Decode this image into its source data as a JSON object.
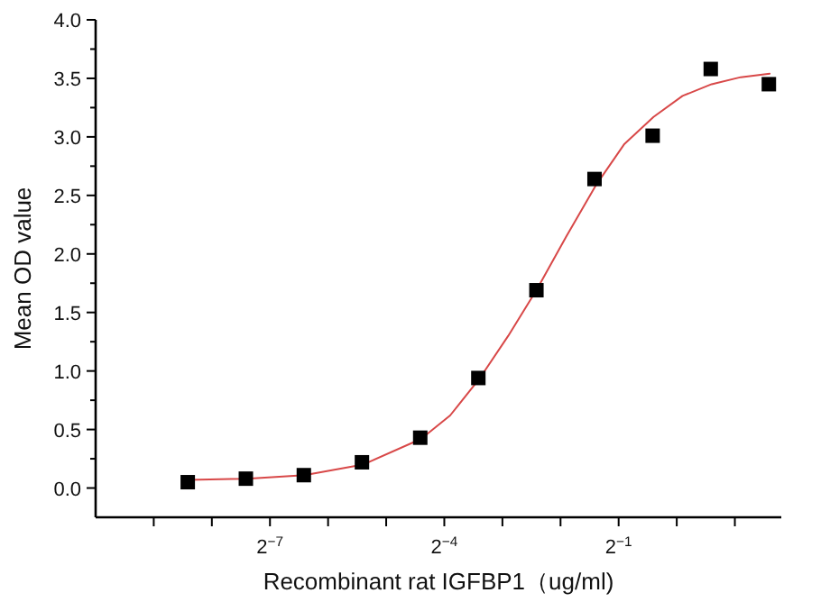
{
  "chart_data": {
    "type": "scatter",
    "xlabel": "Recombinant rat IGFBP1（ug/ml)",
    "ylabel": "Mean OD value",
    "log": "x",
    "xlim": [
      0.0009765625,
      3.48
    ],
    "xticks": [
      {
        "value": 0.001953125,
        "label": null
      },
      {
        "value": 0.00390625,
        "label": null
      },
      {
        "value": 0.0078125,
        "label": "2$^{−7}$"
      },
      {
        "value": 0.015625,
        "label": null
      },
      {
        "value": 0.03125,
        "label": null
      },
      {
        "value": 0.0625,
        "label": "2$^{−4}$"
      },
      {
        "value": 0.125,
        "label": null
      },
      {
        "value": 0.25,
        "label": null
      },
      {
        "value": 0.5,
        "label": "2$^{−1}$"
      },
      {
        "value": 1,
        "label": null
      },
      {
        "value": 2,
        "label": null
      }
    ],
    "ylim": [
      -0.25,
      4.0
    ],
    "yticks": [
      {
        "value": 0,
        "label": "0.0"
      },
      0.5,
      {
        "value": 1,
        "label": "1.0"
      },
      1.5,
      {
        "value": 2,
        "label": "2.0"
      },
      2.5,
      {
        "value": 3,
        "label": "3.0"
      },
      3.5,
      {
        "value": 4,
        "label": "4.0"
      }
    ],
    "series": [
      {
        "type": "line",
        "color": "#d84848",
        "marker": "none",
        "x": [
          0.00296,
          0.00592,
          0.0118,
          0.0237,
          0.0474,
          0.067,
          0.0947,
          0.134,
          0.189,
          0.268,
          0.379,
          0.536,
          0.758,
          1.072,
          1.516,
          2.144,
          3.03
        ],
        "values": [
          0.07,
          0.08,
          0.11,
          0.2,
          0.42,
          0.62,
          0.93,
          1.3,
          1.7,
          2.15,
          2.58,
          2.94,
          3.17,
          3.35,
          3.45,
          3.51,
          3.54
        ]
      },
      {
        "color": "#000000",
        "marker": "square",
        "x": [
          0.00293,
          0.00586,
          0.0117,
          0.0234,
          0.0469,
          0.0938,
          0.1875,
          0.375,
          0.75,
          1.5,
          3
        ],
        "values": [
          0.05,
          0.08,
          0.11,
          0.22,
          0.43,
          0.94,
          1.69,
          2.64,
          3.01,
          3.58,
          3.45
        ]
      }
    ]
  }
}
